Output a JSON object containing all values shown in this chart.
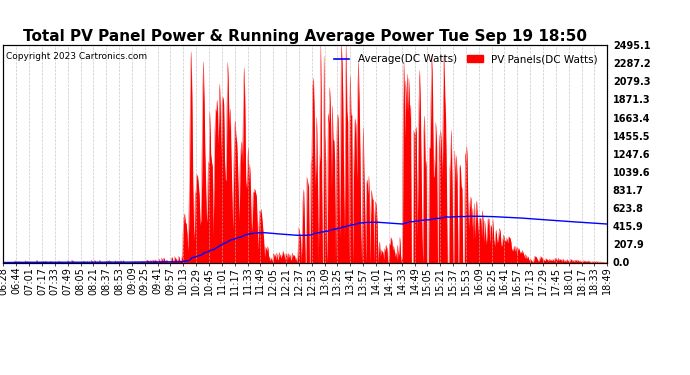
{
  "title": "Total PV Panel Power & Running Average Power Tue Sep 19 18:50",
  "copyright": "Copyright 2023 Cartronics.com",
  "ylabel_right_values": [
    2495.1,
    2287.2,
    2079.3,
    1871.3,
    1663.4,
    1455.5,
    1247.6,
    1039.6,
    831.7,
    623.8,
    415.9,
    207.9,
    0.0
  ],
  "ymax": 2495.1,
  "ymin": 0.0,
  "pv_color": "#ff0000",
  "avg_color": "#0000ff",
  "background_color": "#ffffff",
  "grid_color": "#bbbbbb",
  "title_fontsize": 11,
  "tick_fontsize": 7,
  "legend_labels": [
    "Average(DC Watts)",
    "PV Panels(DC Watts)"
  ],
  "legend_colors": [
    "#0000ff",
    "#ff0000"
  ]
}
